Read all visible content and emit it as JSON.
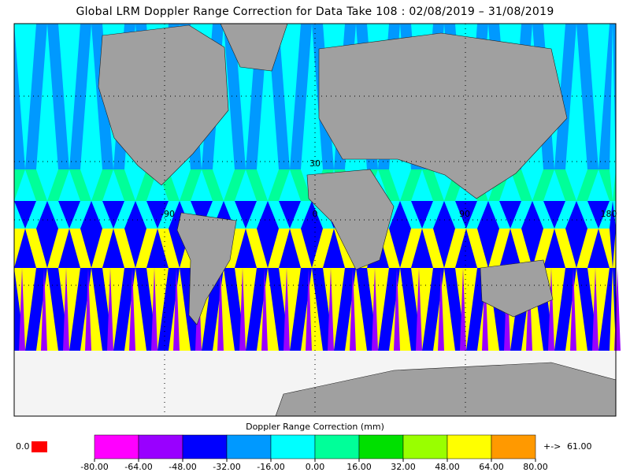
{
  "title": "Global LRM Doppler Range Correction for Data Take 108 : 02/08/2019 – 31/08/2019",
  "map_labels": [
    "30",
    "-90",
    "0",
    "90",
    "180"
  ],
  "colorbar": {
    "label": "Doppler Range Correction (mm)",
    "colors": [
      "#ff00ff",
      "#9900ff",
      "#0000ff",
      "#0099ff",
      "#00ffff",
      "#00ff99",
      "#00e000",
      "#99ff00",
      "#ffff00",
      "#ff9900"
    ],
    "ticks": [
      {
        "value": -80,
        "label": "-80.00"
      },
      {
        "value": -64,
        "label": "-64.00"
      },
      {
        "value": -48,
        "label": "-48.00"
      },
      {
        "value": -32,
        "label": "-32.00"
      },
      {
        "value": -16,
        "label": "-16.00"
      },
      {
        "value": 0,
        "label": "0.00"
      },
      {
        "value": 16,
        "label": "16.00"
      },
      {
        "value": 32,
        "label": "32.00"
      },
      {
        "value": 48,
        "label": "48.00"
      },
      {
        "value": 64,
        "label": "64.00"
      },
      {
        "value": 80,
        "label": "80.00"
      }
    ],
    "min_text": "0.0",
    "min_color": "#ff0000",
    "max_arrow": "+->",
    "max_text": "61.00",
    "max_color": "#ff9900"
  }
}
